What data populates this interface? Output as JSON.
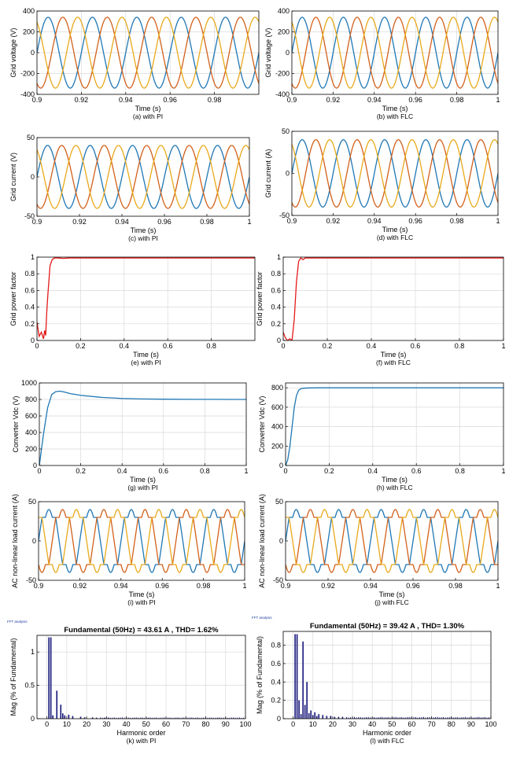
{
  "colors": {
    "blue": "#1f77b4",
    "orange": "#d2601a",
    "yellow": "#e8a91a",
    "red": "#e31a1a",
    "navy": "#15157a",
    "grid": "#d9d9d9",
    "axis": "#000000"
  },
  "chart_data": [
    {
      "type": "line",
      "xlabel": "Time (s)",
      "ylabel": "Grid voltage (V)",
      "caption": "(a) with PI",
      "xlim": [
        0.9,
        1.0
      ],
      "ylim": [
        -400,
        400
      ],
      "xticks": [
        0.9,
        0.92,
        0.94,
        0.96,
        0.98
      ],
      "yticks": [
        -400,
        -200,
        0,
        200,
        400
      ],
      "xtick_labels": [
        "0.9",
        "0.92",
        "0.94",
        "0.96",
        "0.98"
      ],
      "ytick_labels": [
        "-400",
        "-200",
        "0",
        "200",
        "400"
      ],
      "grid": true,
      "waveform": "three-phase-sine",
      "frequency_hz": 50,
      "amplitude": 340,
      "series_colors": [
        "blue",
        "orange",
        "yellow"
      ]
    },
    {
      "type": "line",
      "xlabel": "Time (s)",
      "ylabel": "Grid voltage (V)",
      "caption": "(b) with FLC",
      "xlim": [
        0.9,
        1.0
      ],
      "ylim": [
        -400,
        400
      ],
      "xticks": [
        0.9,
        0.92,
        0.94,
        0.96,
        0.98,
        1.0
      ],
      "yticks": [
        -400,
        -200,
        0,
        200,
        400
      ],
      "xtick_labels": [
        "0.9",
        "0.92",
        "0.94",
        "0.96",
        "0.98",
        "1"
      ],
      "ytick_labels": [
        "-400",
        "-200",
        "0",
        "200",
        "400"
      ],
      "grid": true,
      "waveform": "three-phase-sine",
      "frequency_hz": 50,
      "amplitude": 340,
      "series_colors": [
        "blue",
        "orange",
        "yellow"
      ]
    },
    {
      "type": "line",
      "xlabel": "Time (s)",
      "ylabel": "Grid current (V)",
      "caption": "(c) with PI",
      "xlim": [
        0.9,
        1.0
      ],
      "ylim": [
        -50,
        50
      ],
      "xticks": [
        0.9,
        0.92,
        0.94,
        0.96,
        0.98,
        1.0
      ],
      "yticks": [
        -50,
        0,
        50
      ],
      "xtick_labels": [
        "0.9",
        "0.92",
        "0.94",
        "0.96",
        "0.98",
        "1"
      ],
      "ytick_labels": [
        "-50",
        "0",
        "50"
      ],
      "grid": false,
      "waveform": "three-phase-sine",
      "frequency_hz": 50,
      "amplitude": 40,
      "series_colors": [
        "blue",
        "orange",
        "yellow"
      ]
    },
    {
      "type": "line",
      "xlabel": "Time (s)",
      "ylabel": "Grid current (A)",
      "caption": "(d) with FLC",
      "xlim": [
        0.9,
        1.0
      ],
      "ylim": [
        -50,
        50
      ],
      "xticks": [
        0.9,
        0.92,
        0.94,
        0.96,
        0.98,
        1.0
      ],
      "yticks": [
        -50,
        0,
        50
      ],
      "xtick_labels": [
        "0.9",
        "0.92",
        "0.94",
        "0.96",
        "0.98",
        "1"
      ],
      "ytick_labels": [
        "-50",
        "0",
        "50"
      ],
      "grid": false,
      "waveform": "three-phase-sine",
      "frequency_hz": 50,
      "amplitude": 40,
      "series_colors": [
        "blue",
        "orange",
        "yellow"
      ]
    },
    {
      "type": "line",
      "xlabel": "Time (s)",
      "ylabel": "Grid power factor",
      "caption": "(e) with PI",
      "xlim": [
        0,
        1.0
      ],
      "ylim": [
        0,
        1.0
      ],
      "xticks": [
        0,
        0.2,
        0.4,
        0.6,
        0.8
      ],
      "yticks": [
        0,
        0.2,
        0.4,
        0.6,
        0.8,
        1.0
      ],
      "xtick_labels": [
        "0",
        "0.2",
        "0.4",
        "0.6",
        "0.8"
      ],
      "ytick_labels": [
        "0",
        "0.2",
        "0.4",
        "0.6",
        "0.8",
        "1"
      ],
      "grid": true,
      "series_colors": [
        "red"
      ],
      "series": [
        {
          "x": [
            0,
            0.01,
            0.02,
            0.03,
            0.035,
            0.04,
            0.045,
            0.05,
            0.06,
            0.07,
            0.08,
            0.1,
            0.12,
            0.15,
            0.2,
            0.4,
            0.6,
            0.8,
            1.0
          ],
          "y": [
            0.22,
            0.05,
            0.1,
            0.02,
            0.12,
            0.06,
            0.35,
            0.55,
            0.9,
            0.97,
            0.99,
            0.99,
            0.985,
            0.99,
            0.99,
            0.99,
            0.99,
            0.99,
            0.99
          ]
        }
      ]
    },
    {
      "type": "line",
      "xlabel": "Time (s)",
      "ylabel": "Grid power factor",
      "caption": "(f) with FLC",
      "xlim": [
        0,
        1.0
      ],
      "ylim": [
        0,
        1.0
      ],
      "xticks": [
        0,
        0.2,
        0.4,
        0.6,
        0.8,
        1.0
      ],
      "yticks": [
        0,
        0.2,
        0.4,
        0.6,
        0.8,
        1.0
      ],
      "xtick_labels": [
        "0",
        "0.2",
        "0.4",
        "0.6",
        "0.8",
        "1"
      ],
      "ytick_labels": [
        "0",
        "0.2",
        "0.4",
        "0.6",
        "0.8",
        "1"
      ],
      "grid": true,
      "series_colors": [
        "red"
      ],
      "series": [
        {
          "x": [
            0,
            0.01,
            0.02,
            0.03,
            0.04,
            0.05,
            0.06,
            0.07,
            0.08,
            0.09,
            0.1,
            0.15,
            0.2,
            0.4,
            0.6,
            0.8,
            1.0
          ],
          "y": [
            0.1,
            0.03,
            0.0,
            0.02,
            0.0,
            0.25,
            0.7,
            0.95,
            0.99,
            0.97,
            0.99,
            0.99,
            0.99,
            0.99,
            0.99,
            0.99,
            0.99
          ]
        }
      ]
    },
    {
      "type": "line",
      "xlabel": "Time (s)",
      "ylabel": "Converter Vdc (V)",
      "caption": "(g) with PI",
      "xlim": [
        0,
        1.0
      ],
      "ylim": [
        0,
        1000
      ],
      "xticks": [
        0,
        0.2,
        0.4,
        0.6,
        0.8,
        1.0
      ],
      "yticks": [
        0,
        200,
        400,
        600,
        800,
        1000
      ],
      "xtick_labels": [
        "0",
        "0.2",
        "0.4",
        "0.6",
        "0.8",
        "1"
      ],
      "ytick_labels": [
        "0",
        "200",
        "400",
        "600",
        "800",
        "1000"
      ],
      "grid": true,
      "series_colors": [
        "blue"
      ],
      "series": [
        {
          "x": [
            0,
            0.02,
            0.04,
            0.06,
            0.08,
            0.1,
            0.12,
            0.15,
            0.2,
            0.3,
            0.4,
            0.5,
            0.6,
            0.8,
            1.0
          ],
          "y": [
            0,
            380,
            700,
            860,
            895,
            900,
            890,
            870,
            850,
            825,
            812,
            806,
            803,
            801,
            800
          ]
        }
      ]
    },
    {
      "type": "line",
      "xlabel": "Time (s)",
      "ylabel": "Converter Vdc (V)",
      "caption": "(h) with FLC",
      "xlim": [
        0,
        1.0
      ],
      "ylim": [
        0,
        850
      ],
      "xticks": [
        0,
        0.2,
        0.4,
        0.6,
        0.8,
        1.0
      ],
      "yticks": [
        0,
        200,
        400,
        600,
        800
      ],
      "xtick_labels": [
        "0",
        "0.2",
        "0.4",
        "0.6",
        "0.8",
        "1"
      ],
      "ytick_labels": [
        "0",
        "200",
        "400",
        "600",
        "800"
      ],
      "grid": true,
      "series_colors": [
        "blue"
      ],
      "series": [
        {
          "x": [
            0,
            0.01,
            0.02,
            0.03,
            0.04,
            0.05,
            0.06,
            0.07,
            0.08,
            0.1,
            0.15,
            0.2,
            0.4,
            0.6,
            0.8,
            1.0
          ],
          "y": [
            0,
            60,
            200,
            400,
            600,
            720,
            775,
            790,
            795,
            798,
            800,
            800,
            800,
            800,
            800,
            800
          ]
        }
      ]
    },
    {
      "type": "line",
      "xlabel": "Time (s)",
      "ylabel": "AC non-linear load current (A)",
      "caption": "(i) with PI",
      "xlim": [
        0.9,
        1.0
      ],
      "ylim": [
        -50,
        50
      ],
      "xticks": [
        0.9,
        0.92,
        0.94,
        0.96,
        0.98,
        1.0
      ],
      "yticks": [
        -50,
        0,
        50
      ],
      "xtick_labels": [
        "0.9",
        "0.92",
        "0.94",
        "0.96",
        "0.98",
        "1"
      ],
      "ytick_labels": [
        "-50",
        "0",
        "50"
      ],
      "grid": false,
      "waveform": "three-phase-nonlinear",
      "frequency_hz": 50,
      "amplitude": 40,
      "series_colors": [
        "blue",
        "orange",
        "yellow"
      ]
    },
    {
      "type": "line",
      "xlabel": "Time (s)",
      "ylabel": "AC non-linear load current (A)",
      "caption": "(j) with FLC",
      "xlim": [
        0.9,
        1.0
      ],
      "ylim": [
        -50,
        50
      ],
      "xticks": [
        0.9,
        0.92,
        0.94,
        0.96,
        0.98,
        1.0
      ],
      "yticks": [
        -50,
        0,
        50
      ],
      "xtick_labels": [
        "0.9",
        "0.92",
        "0.94",
        "0.96",
        "0.98",
        "1"
      ],
      "ytick_labels": [
        "-50",
        "0",
        "50"
      ],
      "grid": false,
      "waveform": "three-phase-nonlinear",
      "frequency_hz": 50,
      "amplitude": 40,
      "series_colors": [
        "blue",
        "orange",
        "yellow"
      ]
    },
    {
      "type": "bar",
      "title": "Fundamental (50Hz) = 43.61 A , THD= 1.62%",
      "corner_label": "FFT analysis",
      "xlabel": "Harmonic order",
      "ylabel": "Mag (% of Fundamental)",
      "caption": "(k) with PI",
      "xlim": [
        -5,
        100
      ],
      "ylim": [
        0,
        1.25
      ],
      "xticks": [
        0,
        10,
        20,
        30,
        40,
        50,
        60,
        70,
        80,
        90,
        100
      ],
      "yticks": [
        0,
        0.5,
        1
      ],
      "xtick_labels": [
        "0",
        "10",
        "20",
        "30",
        "40",
        "50",
        "60",
        "70",
        "80",
        "90",
        "100"
      ],
      "ytick_labels": [
        "0",
        "0.5",
        "1"
      ],
      "grid": true,
      "series_colors": [
        "navy"
      ],
      "bars": {
        "x": [
          1,
          2,
          3,
          5,
          7,
          8,
          9,
          11,
          13,
          17,
          19,
          23,
          25,
          29,
          31
        ],
        "y": [
          1.22,
          1.22,
          0.05,
          0.42,
          0.21,
          0.08,
          0.05,
          0.06,
          0.04,
          0.03,
          0.02,
          0.02,
          0.015,
          0.015,
          0.01
        ]
      }
    },
    {
      "type": "bar",
      "title": "Fundamental (50Hz) = 39.42 A , THD= 1.30%",
      "corner_label": "FFT analysis",
      "xlabel": "Harmonic order",
      "ylabel": "Mag (% of Fundamental)",
      "caption": "(l) with FLC",
      "xlim": [
        -5,
        100
      ],
      "ylim": [
        0,
        0.95
      ],
      "xticks": [
        0,
        10,
        20,
        30,
        40,
        50,
        60,
        70,
        80,
        90,
        100
      ],
      "yticks": [
        0,
        0.2,
        0.4,
        0.6,
        0.8
      ],
      "xtick_labels": [
        "0",
        "10",
        "20",
        "30",
        "40",
        "50",
        "60",
        "70",
        "80",
        "90",
        "100"
      ],
      "ytick_labels": [
        "0",
        "0.2",
        "0.4",
        "0.6",
        "0.8"
      ],
      "grid": true,
      "series_colors": [
        "navy"
      ],
      "bars": {
        "x": [
          1,
          2,
          3,
          4,
          5,
          6,
          7,
          8,
          9,
          10,
          11,
          12,
          13,
          15,
          17,
          19,
          21,
          23,
          25
        ],
        "y": [
          0.92,
          0.92,
          0.2,
          0.05,
          0.84,
          0.15,
          0.4,
          0.06,
          0.09,
          0.04,
          0.07,
          0.03,
          0.05,
          0.04,
          0.03,
          0.03,
          0.02,
          0.02,
          0.02
        ]
      }
    }
  ]
}
